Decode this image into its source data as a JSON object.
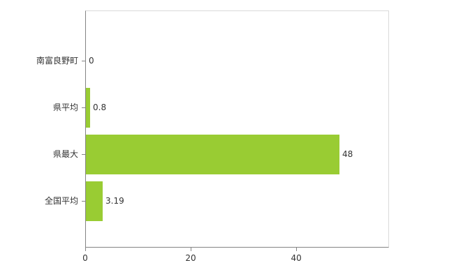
{
  "chart_data": {
    "type": "bar",
    "orientation": "horizontal",
    "title": "",
    "xlabel": "",
    "ylabel": "",
    "categories": [
      "南富良野町",
      "県平均",
      "県最大",
      "全国平均"
    ],
    "values": [
      0,
      0.8,
      48,
      3.19
    ],
    "value_labels": [
      "0",
      "0.8",
      "48",
      "3.19"
    ],
    "x_ticks": [
      0,
      20,
      40
    ],
    "x_tick_labels": [
      "0",
      "20",
      "40"
    ],
    "xlim": [
      0,
      57.6
    ],
    "bar_color": "#99cc33",
    "grid": false,
    "legend": "none"
  }
}
